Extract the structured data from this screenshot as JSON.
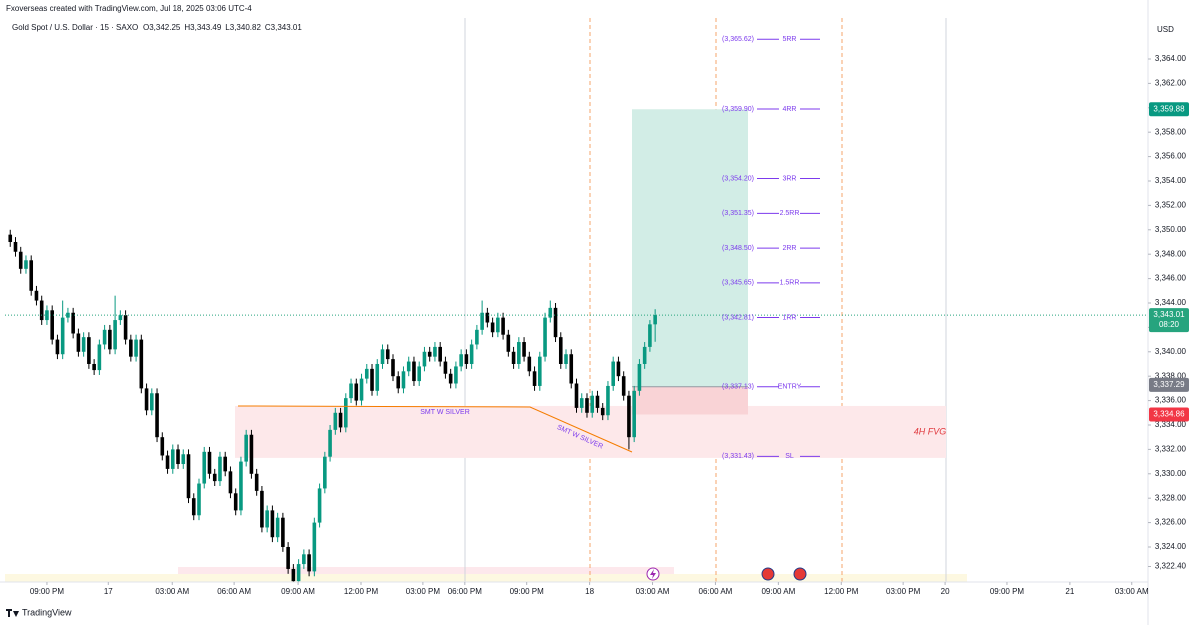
{
  "chart_data": {
    "type": "candlestick",
    "subtitle": "Fxoverseas created with TradingView.com, Jul 18, 2025 03:06 UTC-4",
    "title": "Gold Spot / U.S. Dollar · 15 · SAXO",
    "ohlc_text": [
      "O3,342.25",
      "H3,343.49",
      "L3,340.82",
      "C3,343.01"
    ],
    "currency": "USD",
    "brand": "TradingView",
    "up_color": "#089981",
    "down_color": "#000000",
    "open": [
      3349.6,
      3349.0,
      3348.2,
      3346.8,
      3347.5,
      3345.0,
      3344.2,
      3342.6,
      3343.4,
      3341.0,
      3339.8,
      3342.8,
      3343.2,
      3341.5,
      3340.0,
      3341.2,
      3339.0,
      3338.5,
      3340.6,
      3341.8,
      3340.2,
      3342.6,
      3343.0,
      3341.0,
      3339.6,
      3341.0,
      3337.0,
      3335.2,
      3336.6,
      3333.0,
      3331.5,
      3330.4,
      3332.0,
      3330.8,
      3331.6,
      3328.0,
      3326.6,
      3329.2,
      3331.8,
      3330.0,
      3329.4,
      3331.4,
      3330.2,
      3328.4,
      3327.0,
      3331.0,
      3333.2,
      3330.0,
      3328.6,
      3325.6,
      3327.0,
      3324.8,
      3326.4,
      3324.0,
      3322.2,
      3321.2,
      3322.6,
      3323.4,
      3322.0,
      3326.0,
      3328.8,
      3331.4,
      3333.6,
      3335.0,
      3333.8,
      3336.2,
      3337.4,
      3336.0,
      3337.8,
      3338.6,
      3336.8,
      3339.0,
      3340.2,
      3339.4,
      3338.0,
      3337.0,
      3338.4,
      3339.2,
      3337.6,
      3338.8,
      3340.0,
      3339.6,
      3340.4,
      3339.2,
      3338.2,
      3337.4,
      3338.8,
      3339.8,
      3339.0,
      3340.6,
      3341.8,
      3343.2,
      3342.4,
      3341.6,
      3342.8,
      3341.4,
      3340.0,
      3339.0,
      3340.8,
      3339.6,
      3338.4,
      3337.2,
      3339.6,
      3342.8,
      3343.6,
      3341.2,
      3339.0,
      3339.8,
      3337.4,
      3335.4,
      3336.2,
      3335.0,
      3336.4,
      3335.4,
      3334.8,
      3337.2,
      3339.2,
      3338.0,
      3336.4,
      3333.0,
      3336.8,
      3339.0,
      3340.4,
      3342.25
    ],
    "high": [
      3350.0,
      3349.4,
      3348.6,
      3347.9,
      3347.9,
      3345.4,
      3344.6,
      3343.8,
      3343.8,
      3341.4,
      3344.2,
      3343.6,
      3343.6,
      3341.9,
      3341.6,
      3341.6,
      3339.4,
      3341.0,
      3342.2,
      3342.2,
      3344.6,
      3343.4,
      3343.4,
      3341.4,
      3341.4,
      3341.4,
      3337.4,
      3337.0,
      3337.0,
      3333.4,
      3331.9,
      3332.4,
      3332.4,
      3332.0,
      3332.0,
      3328.4,
      3329.6,
      3332.2,
      3332.2,
      3330.4,
      3331.8,
      3331.8,
      3330.6,
      3328.8,
      3331.4,
      3333.6,
      3333.6,
      3330.4,
      3329.0,
      3327.4,
      3327.4,
      3326.8,
      3326.8,
      3324.4,
      3322.6,
      3323.0,
      3323.8,
      3323.8,
      3326.4,
      3329.2,
      3331.8,
      3334.0,
      3335.4,
      3335.4,
      3336.6,
      3337.8,
      3337.8,
      3338.2,
      3339.0,
      3339.0,
      3339.4,
      3340.6,
      3340.6,
      3339.8,
      3338.4,
      3338.8,
      3339.6,
      3339.6,
      3339.2,
      3340.4,
      3340.4,
      3340.8,
      3340.8,
      3339.6,
      3338.6,
      3339.2,
      3340.2,
      3340.2,
      3341.0,
      3342.2,
      3344.2,
      3343.6,
      3342.8,
      3343.2,
      3343.2,
      3341.8,
      3340.4,
      3341.2,
      3341.2,
      3340.0,
      3338.8,
      3340.0,
      3343.2,
      3344.2,
      3344.0,
      3341.6,
      3340.2,
      3340.2,
      3337.8,
      3336.6,
      3336.6,
      3336.8,
      3336.8,
      3335.8,
      3337.6,
      3339.6,
      3339.6,
      3338.4,
      3336.8,
      3337.2,
      3339.4,
      3340.8,
      3342.6,
      3343.49
    ],
    "low": [
      3348.6,
      3347.8,
      3346.4,
      3346.4,
      3344.6,
      3343.8,
      3342.2,
      3342.2,
      3340.6,
      3339.4,
      3339.4,
      3342.4,
      3341.1,
      3339.6,
      3339.6,
      3338.6,
      3338.1,
      3338.1,
      3340.2,
      3339.8,
      3339.8,
      3342.2,
      3340.6,
      3339.2,
      3339.2,
      3336.6,
      3334.8,
      3334.8,
      3332.6,
      3331.1,
      3330.0,
      3330.0,
      3330.4,
      3330.4,
      3327.6,
      3326.2,
      3326.2,
      3328.8,
      3329.6,
      3329.0,
      3329.0,
      3329.8,
      3328.0,
      3326.6,
      3326.6,
      3330.6,
      3329.6,
      3328.2,
      3325.2,
      3325.2,
      3324.4,
      3324.4,
      3323.6,
      3321.8,
      3320.8,
      3320.8,
      3322.2,
      3321.6,
      3321.6,
      3325.6,
      3328.4,
      3331.0,
      3333.2,
      3333.4,
      3333.4,
      3335.8,
      3335.6,
      3335.6,
      3337.4,
      3336.4,
      3336.4,
      3338.6,
      3339.0,
      3337.6,
      3336.6,
      3336.6,
      3338.0,
      3337.2,
      3337.2,
      3338.4,
      3339.2,
      3339.2,
      3338.8,
      3337.8,
      3337.0,
      3337.0,
      3338.4,
      3338.6,
      3338.6,
      3340.2,
      3341.4,
      3342.0,
      3341.2,
      3341.2,
      3341.0,
      3339.6,
      3338.6,
      3338.6,
      3339.2,
      3338.0,
      3336.8,
      3336.8,
      3339.2,
      3342.4,
      3340.8,
      3338.6,
      3338.6,
      3337.0,
      3335.0,
      3335.0,
      3334.6,
      3334.6,
      3335.0,
      3334.4,
      3334.4,
      3336.8,
      3337.6,
      3336.0,
      3332.0,
      3332.6,
      3336.4,
      3338.6,
      3340.0,
      3340.82
    ],
    "close": [
      3349.0,
      3348.2,
      3346.8,
      3347.5,
      3345.0,
      3344.2,
      3342.6,
      3343.4,
      3341.0,
      3339.8,
      3342.8,
      3343.2,
      3341.5,
      3340.0,
      3341.2,
      3339.0,
      3338.5,
      3340.6,
      3341.8,
      3340.2,
      3342.6,
      3343.0,
      3341.0,
      3339.6,
      3341.0,
      3337.0,
      3335.2,
      3336.6,
      3333.0,
      3331.5,
      3330.4,
      3332.0,
      3330.8,
      3331.6,
      3328.0,
      3326.6,
      3329.2,
      3331.8,
      3330.0,
      3329.4,
      3331.4,
      3330.2,
      3328.4,
      3327.0,
      3331.0,
      3333.2,
      3330.0,
      3328.6,
      3325.6,
      3327.0,
      3324.8,
      3326.4,
      3324.0,
      3322.2,
      3321.2,
      3322.6,
      3323.4,
      3322.0,
      3326.0,
      3328.8,
      3331.4,
      3333.6,
      3335.0,
      3333.8,
      3336.2,
      3337.4,
      3336.0,
      3337.8,
      3338.6,
      3336.8,
      3339.0,
      3340.2,
      3339.4,
      3338.0,
      3337.0,
      3338.4,
      3339.2,
      3337.6,
      3338.8,
      3340.0,
      3339.6,
      3340.4,
      3339.2,
      3338.2,
      3337.4,
      3338.8,
      3339.8,
      3339.0,
      3340.6,
      3341.8,
      3343.2,
      3342.4,
      3341.6,
      3342.8,
      3341.4,
      3340.0,
      3339.0,
      3340.8,
      3339.6,
      3338.4,
      3337.2,
      3339.6,
      3342.8,
      3343.6,
      3341.2,
      3339.0,
      3339.8,
      3337.4,
      3335.4,
      3336.2,
      3335.0,
      3336.4,
      3335.4,
      3334.8,
      3337.2,
      3339.2,
      3338.0,
      3336.4,
      3333.0,
      3336.8,
      3339.0,
      3340.4,
      3342.25,
      3343.01
    ],
    "xlim": [
      -1,
      217
    ],
    "xticks": [
      {
        "value": 7.0,
        "label": "09:00 PM"
      },
      {
        "value": 18.7,
        "label": "17"
      },
      {
        "value": 30.9,
        "label": "03:00 AM"
      },
      {
        "value": 42.7,
        "label": "06:00 AM"
      },
      {
        "value": 54.9,
        "label": "09:00 AM"
      },
      {
        "value": 66.9,
        "label": "12:00 PM"
      },
      {
        "value": 78.7,
        "label": "03:00 PM"
      },
      {
        "value": 86.7,
        "label": "06:00 PM"
      },
      {
        "value": 98.5,
        "label": "09:00 PM"
      },
      {
        "value": 110.5,
        "label": "18"
      },
      {
        "value": 122.5,
        "label": "03:00 AM"
      },
      {
        "value": 134.5,
        "label": "06:00 AM"
      },
      {
        "value": 146.5,
        "label": "09:00 AM"
      },
      {
        "value": 158.5,
        "label": "12:00 PM"
      },
      {
        "value": 170.3,
        "label": "03:00 PM"
      },
      {
        "value": 178.3,
        "label": "20"
      },
      {
        "value": 190.1,
        "label": "09:00 PM"
      },
      {
        "value": 202.1,
        "label": "21"
      },
      {
        "value": 213.9,
        "label": "03:00 AM"
      }
    ],
    "ylim": [
      3321.13,
      3367.36
    ],
    "yticks": [
      {
        "value": 3322.4,
        "label": "3,322.40"
      },
      {
        "value": 3324,
        "label": "3,324.00"
      },
      {
        "value": 3326,
        "label": "3,326.00"
      },
      {
        "value": 3328,
        "label": "3,328.00"
      },
      {
        "value": 3330,
        "label": "3,330.00"
      },
      {
        "value": 3332,
        "label": "3,332.00"
      },
      {
        "value": 3334,
        "label": "3,334.00"
      },
      {
        "value": 3336,
        "label": "3,336.00"
      },
      {
        "value": 3338,
        "label": "3,338.00"
      },
      {
        "value": 3340,
        "label": "3,340.00"
      },
      {
        "value": 3342,
        "label": "3,342.00"
      },
      {
        "value": 3344,
        "label": "3,344.00"
      },
      {
        "value": 3346,
        "label": "3,346.00"
      },
      {
        "value": 3348,
        "label": "3,348.00"
      },
      {
        "value": 3350,
        "label": "3,350.00"
      },
      {
        "value": 3352,
        "label": "3,352.00"
      },
      {
        "value": 3354,
        "label": "3,354.00"
      },
      {
        "value": 3356,
        "label": "3,356.00"
      },
      {
        "value": 3358,
        "label": "3,358.00"
      },
      {
        "value": 3360,
        "label": "3,360.00"
      },
      {
        "value": 3362,
        "label": "3,362.00"
      },
      {
        "value": 3364,
        "label": "3,364.00"
      }
    ],
    "levels": [
      {
        "name": "5RR",
        "value": 3365.62,
        "label": "(3,365.62)"
      },
      {
        "name": "4RR",
        "value": 3359.9,
        "label": "(3,359.90)"
      },
      {
        "name": "3RR",
        "value": 3354.2,
        "label": "(3,354.20)"
      },
      {
        "name": "2.5RR",
        "value": 3351.35,
        "label": "(3,351.35)"
      },
      {
        "name": "2RR",
        "value": 3348.5,
        "label": "(3,348.50)"
      },
      {
        "name": "1.5RR",
        "value": 3345.65,
        "label": "(3,345.65)"
      },
      {
        "name": "1RR",
        "value": 3342.81,
        "label": "(3,342.81)"
      },
      {
        "name": "ENTRY",
        "value": 3337.13,
        "label": "(3,337.13)"
      },
      {
        "name": "SL",
        "value": 3331.43,
        "label": "(3,331.43)"
      }
    ],
    "levels_color": "#7c3aed",
    "position": {
      "target": 3359.88,
      "entry": 3337.13,
      "stop": 3334.86,
      "profit_color": "#d2ede6",
      "loss_color": "#f9d3d6"
    },
    "zone": {
      "label": "4H FVG",
      "top": 3335.56,
      "bottom": 3331.3,
      "color": "#fde8ea",
      "label_color": "#e0393e"
    },
    "annotations": [
      "SMT W SILVER",
      "SMT W SILVER"
    ],
    "last_price": {
      "value": 3343.01,
      "label": "3,343.01",
      "countdown": "08:20",
      "color": "#26a47e"
    },
    "price_badges": [
      {
        "value": 3359.88,
        "label": "3,359.88",
        "color": "#089981"
      },
      {
        "value": 3337.29,
        "label": "3,337.29",
        "color": "#787b86"
      },
      {
        "value": 3334.86,
        "label": "3,334.86",
        "color": "#f23645"
      }
    ]
  }
}
